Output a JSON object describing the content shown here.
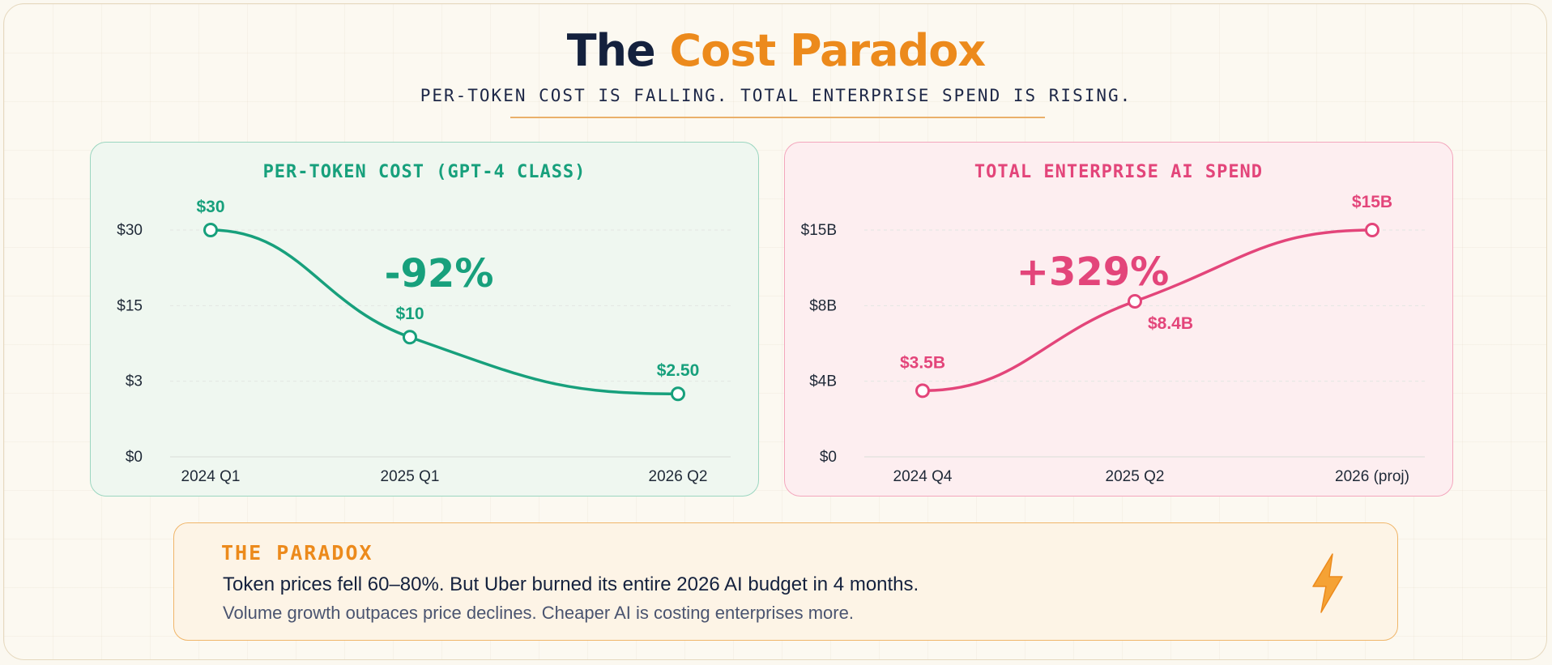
{
  "header": {
    "title_part1": "The",
    "title_part2": "Cost Paradox",
    "subtitle": "PER-TOKEN COST IS FALLING. TOTAL ENTERPRISE SPEND IS RISING."
  },
  "colors": {
    "accent_orange": "#ec8a1c",
    "green": "#17a07c",
    "pink": "#e3457a",
    "navy": "#14213d"
  },
  "chart_data": [
    {
      "type": "line",
      "title": "PER-TOKEN COST (GPT-4 CLASS)",
      "x": [
        "2024 Q1",
        "2025 Q1",
        "2026 Q2"
      ],
      "series": [
        {
          "values": [
            30,
            10,
            2.5
          ]
        }
      ],
      "data_labels": [
        "$30",
        "$10",
        "$2.50"
      ],
      "ytick_labels": [
        "$30",
        "$15",
        "$3",
        "$0"
      ],
      "ytick_values": [
        30,
        15,
        3,
        0
      ],
      "annotation": "-92%",
      "grid": true,
      "color": "#17a07c"
    },
    {
      "type": "line",
      "title": "TOTAL ENTERPRISE AI SPEND",
      "x": [
        "2024 Q4",
        "2025 Q2",
        "2026 (proj)"
      ],
      "series": [
        {
          "values": [
            3.5,
            8.4,
            15
          ]
        }
      ],
      "data_labels": [
        "$3.5B",
        "$8.4B",
        "$15B"
      ],
      "ytick_labels": [
        "$15B",
        "$8B",
        "$4B",
        "$0"
      ],
      "ytick_values": [
        15,
        8,
        4,
        0
      ],
      "annotation": "+329%",
      "grid": true,
      "color": "#e3457a"
    }
  ],
  "paradox": {
    "heading": "THE PARADOX",
    "main": "Token prices fell 60–80%. But Uber burned its entire 2026 AI budget in 4 months.",
    "sub": "Volume growth outpaces price declines. Cheaper AI is costing enterprises more.",
    "icon": "lightning-bolt-icon"
  }
}
